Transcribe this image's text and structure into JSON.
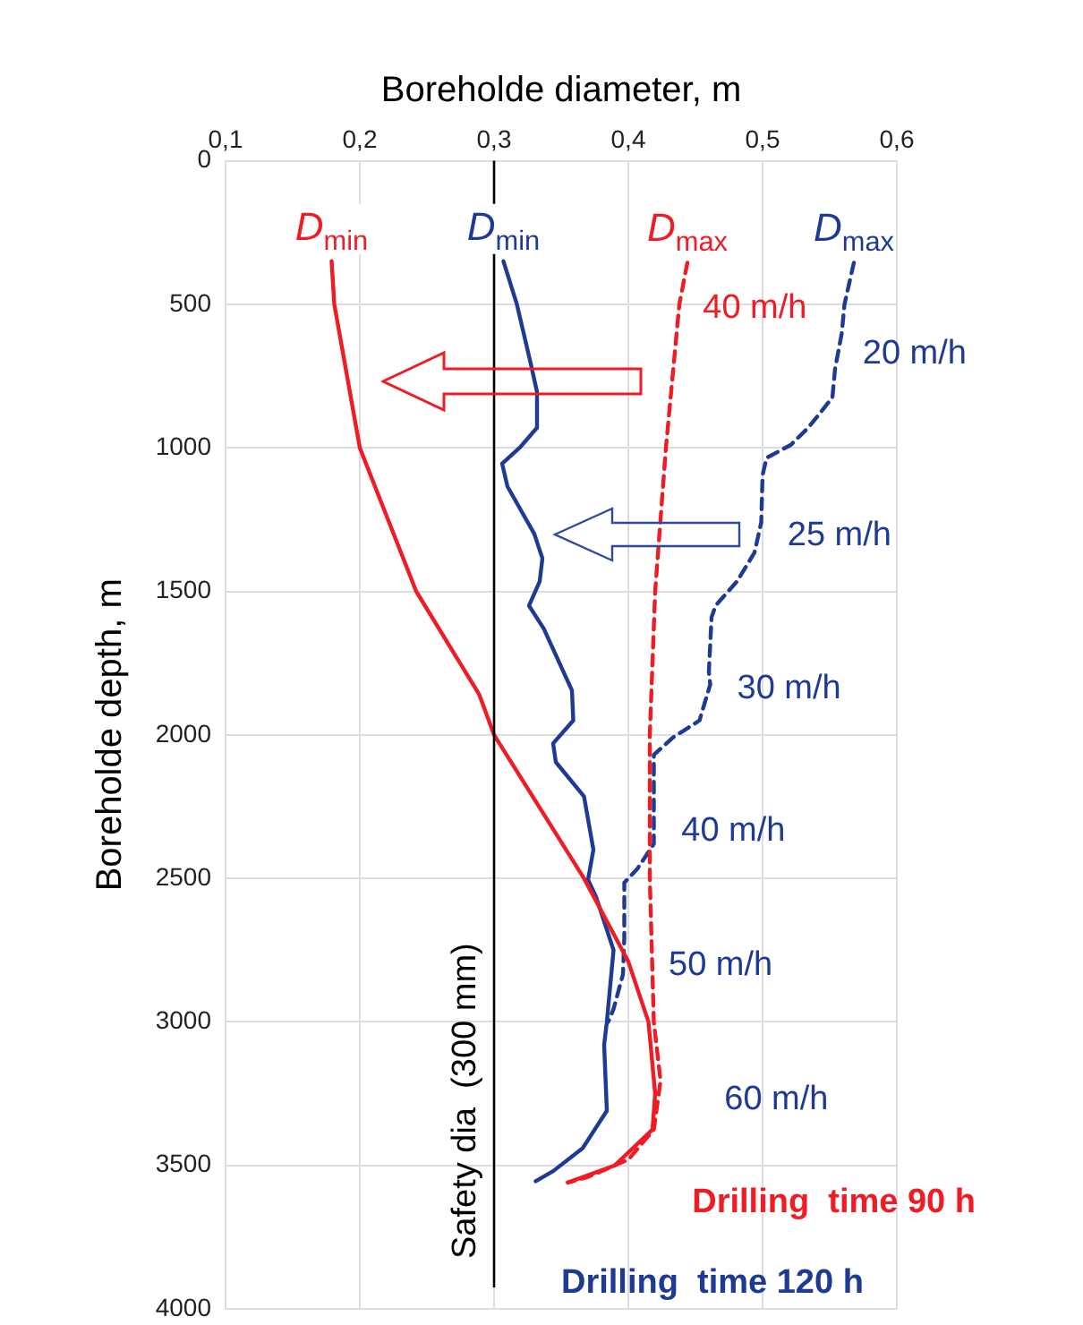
{
  "chart_data": {
    "type": "line",
    "xlabel": "Boreholde diameter, m",
    "ylabel": "Boreholde depth, m",
    "xlim": [
      0.1,
      0.6
    ],
    "xticks": [
      {
        "value": 0.1,
        "label": "0,1"
      },
      {
        "value": 0.2,
        "label": "0,2"
      },
      {
        "value": 0.3,
        "label": "0,3"
      },
      {
        "value": 0.4,
        "label": "0,4"
      },
      {
        "value": 0.5,
        "label": "0,5"
      },
      {
        "value": 0.6,
        "label": "0,6"
      }
    ],
    "ylim": [
      4000,
      0
    ],
    "yticks": [
      0,
      500,
      1000,
      1500,
      2000,
      2500,
      3000,
      3500,
      4000
    ],
    "grid": true,
    "legend": false,
    "marker": "none",
    "series": [
      {
        "name": "D$_{min}$",
        "color": "#ee1c25",
        "line_style": "solid",
        "x": [
          0.179,
          0.181,
          0.2,
          0.242,
          0.289,
          0.3,
          0.367,
          0.4,
          0.415,
          0.42,
          0.418,
          0.39,
          0.355
        ],
        "values": [
          350,
          500,
          1000,
          1500,
          1860,
          2000,
          2500,
          2790,
          3000,
          3250,
          3375,
          3500,
          3560
        ]
      },
      {
        "name": "D$_{min}$",
        "color": "#1f3a93",
        "line_style": "solid",
        "x": [
          0.307,
          0.317,
          0.327,
          0.332,
          0.332,
          0.319,
          0.306,
          0.31,
          0.33,
          0.336,
          0.334,
          0.326,
          0.337,
          0.358,
          0.359,
          0.344,
          0.346,
          0.367,
          0.374,
          0.37,
          0.376,
          0.389,
          0.384,
          0.382,
          0.384,
          0.366,
          0.344,
          0.331
        ],
        "values": [
          350,
          500,
          700,
          805,
          930,
          1000,
          1055,
          1135,
          1300,
          1385,
          1465,
          1550,
          1630,
          1845,
          1950,
          2030,
          2095,
          2215,
          2400,
          2505,
          2565,
          2750,
          3000,
          3080,
          3310,
          3440,
          3520,
          3555
        ]
      },
      {
        "name": "D$_{max}$",
        "color": "#ee1c25",
        "line_style": "dashed",
        "x": [
          0.444,
          0.438,
          0.428,
          0.42,
          0.416,
          0.416,
          0.419,
          0.424,
          0.419,
          0.4,
          0.37,
          0.355
        ],
        "values": [
          355,
          500,
          1000,
          1500,
          2000,
          2500,
          3000,
          3205,
          3375,
          3480,
          3540,
          3560
        ]
      },
      {
        "name": "D$_{max}$",
        "color": "#1f3a93",
        "line_style": "dashed",
        "x": [
          0.568,
          0.561,
          0.559,
          0.554,
          0.552,
          0.534,
          0.521,
          0.503,
          0.5,
          0.499,
          0.494,
          0.481,
          0.465,
          0.462,
          0.46,
          0.461,
          0.453,
          0.433,
          0.419,
          0.419,
          0.407,
          0.397,
          0.397,
          0.396,
          0.389,
          0.385
        ],
        "values": [
          355,
          500,
          600,
          725,
          825,
          930,
          990,
          1035,
          1095,
          1260,
          1365,
          1465,
          1550,
          1590,
          1780,
          1825,
          1950,
          2010,
          2070,
          2380,
          2465,
          2515,
          2710,
          2835,
          2955,
          3000
        ]
      }
    ],
    "ref_lines": [
      {
        "axis": "x",
        "value": 0.3,
        "label": "Safety dia  (300 mm)",
        "color": "#000000"
      }
    ],
    "annotations": [
      "40 m/h",
      "20 m/h",
      "25 m/h",
      "30 m/h",
      "40 m/h",
      "50 m/h",
      "60 m/h",
      "Drilling  time 90 h",
      "Drilling  time 120 h"
    ]
  }
}
